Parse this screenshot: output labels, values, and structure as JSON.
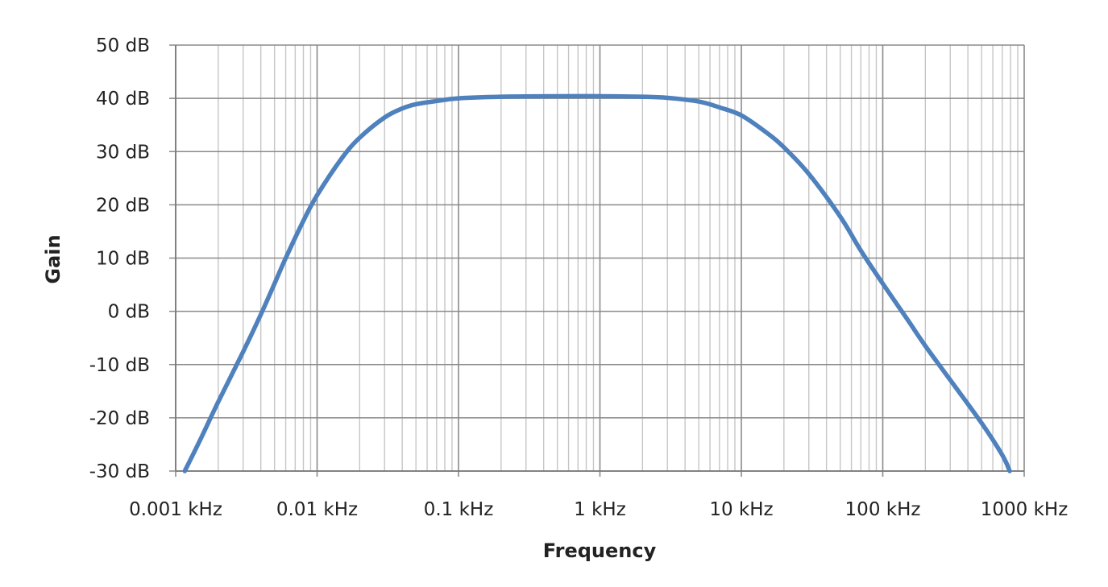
{
  "chart_data": {
    "type": "line",
    "title": "",
    "xlabel": "Frequency",
    "ylabel": "Gain",
    "x_scale": "log",
    "xlim": [
      0.001,
      1000
    ],
    "ylim": [
      -30,
      50
    ],
    "grid": true,
    "legend": "none",
    "x_ticks": [
      {
        "value": 0.001,
        "label": "0.001 kHz"
      },
      {
        "value": 0.01,
        "label": "0.01 kHz"
      },
      {
        "value": 0.1,
        "label": "0.1 kHz"
      },
      {
        "value": 1,
        "label": "1 kHz"
      },
      {
        "value": 10,
        "label": "10 kHz"
      },
      {
        "value": 100,
        "label": "100 kHz"
      },
      {
        "value": 1000,
        "label": "1000 kHz"
      }
    ],
    "y_ticks": [
      {
        "value": 50,
        "label": "50 dB"
      },
      {
        "value": 40,
        "label": "40 dB"
      },
      {
        "value": 30,
        "label": "30 dB"
      },
      {
        "value": 20,
        "label": "20 dB"
      },
      {
        "value": 10,
        "label": "10 dB"
      },
      {
        "value": 0,
        "label": "0 dB"
      },
      {
        "value": -10,
        "label": "-10 dB"
      },
      {
        "value": -20,
        "label": "-20 dB"
      },
      {
        "value": -30,
        "label": "-30 dB"
      }
    ],
    "series": [
      {
        "color": "#4f81bd",
        "x": [
          0.00116,
          0.0015,
          0.002,
          0.003,
          0.004,
          0.005,
          0.006,
          0.008,
          0.01,
          0.015,
          0.02,
          0.03,
          0.04,
          0.05,
          0.07,
          0.1,
          0.2,
          0.5,
          1,
          2,
          3,
          5,
          7,
          10,
          15,
          20,
          30,
          50,
          70,
          100,
          150,
          200,
          300,
          500,
          700,
          790
        ],
        "y": [
          -30,
          -24,
          -17,
          -7.6,
          -0.6,
          5.2,
          10,
          17,
          21.8,
          28.8,
          32.6,
          36.4,
          38.1,
          38.9,
          39.5,
          40,
          40.3,
          40.4,
          40.4,
          40.3,
          40.1,
          39.4,
          38.3,
          36.8,
          33.6,
          30.8,
          25.8,
          17.8,
          11.4,
          5.2,
          -1.6,
          -6.5,
          -12.9,
          -21,
          -27,
          -30
        ]
      }
    ]
  }
}
